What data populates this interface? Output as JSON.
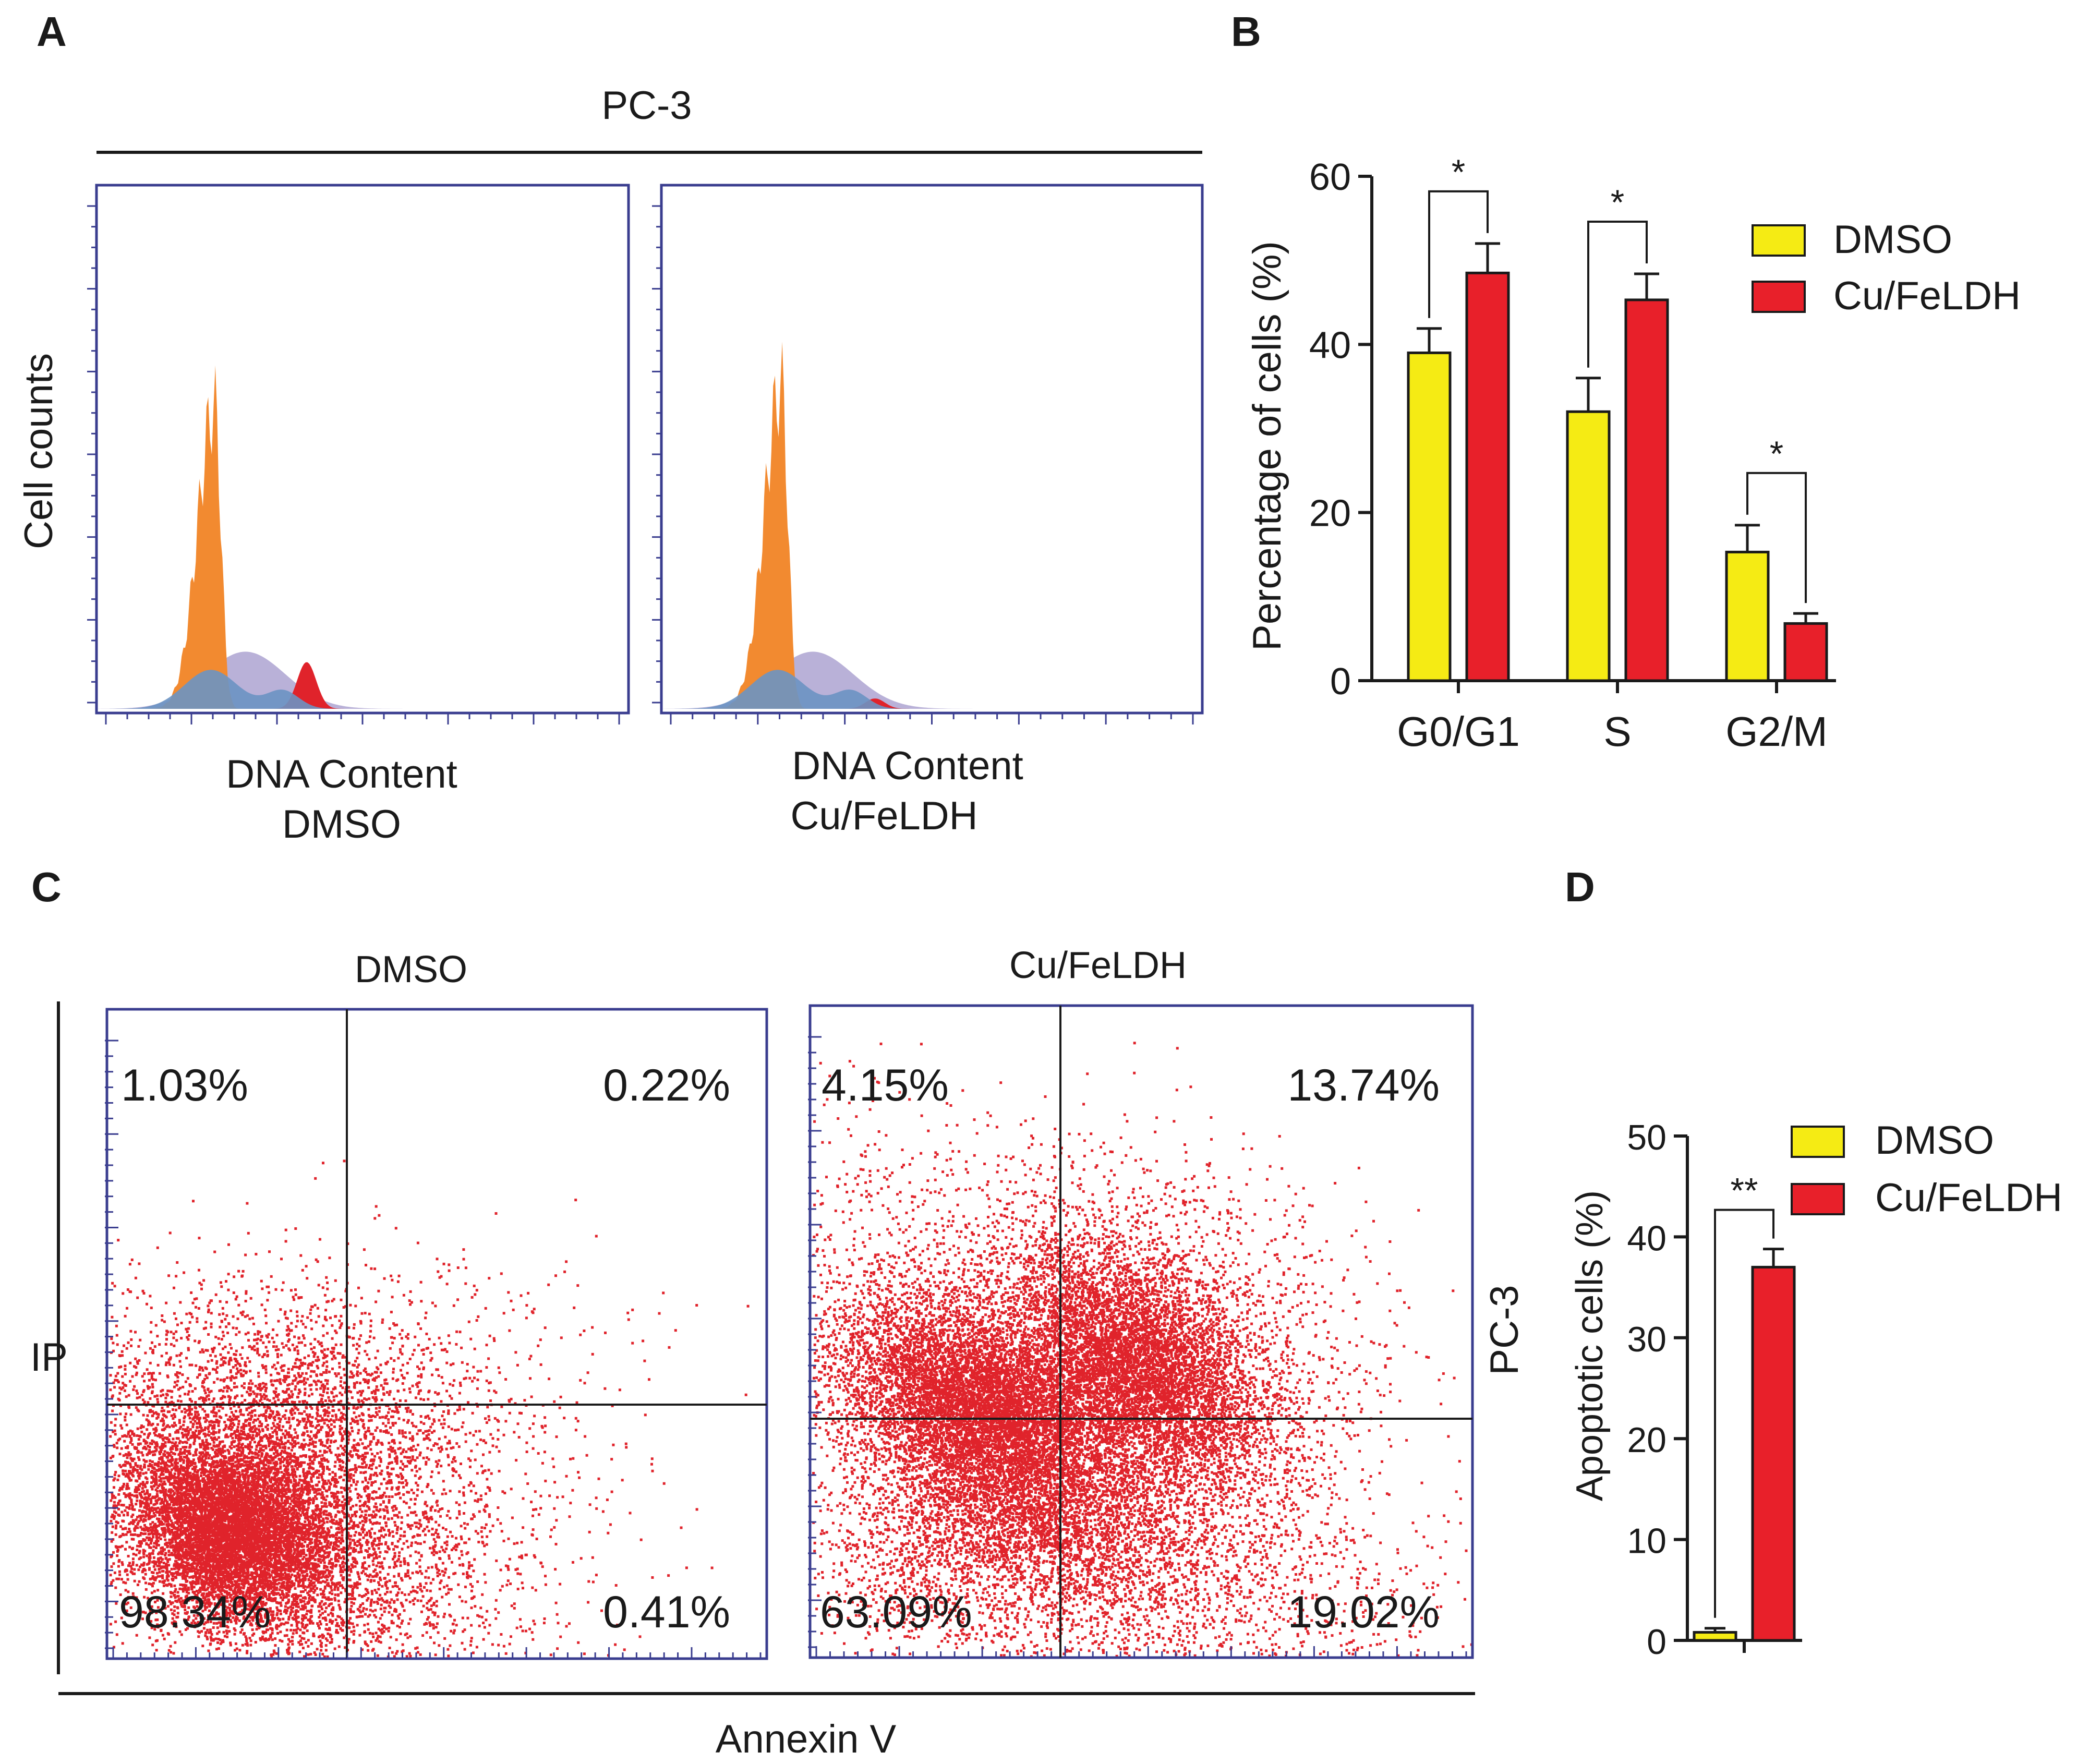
{
  "panels": {
    "A": {
      "letter": "A",
      "cell_line": "PC-3",
      "ylabel": "Cell counts",
      "histograms": [
        {
          "xlabel": [
            "DNA Content",
            "DMSO"
          ],
          "g1_peak": 0.58,
          "s_peak": 0.11,
          "g2_peak": 0.09
        },
        {
          "xlabel": [
            "DNA Content",
            "Cu/FeLDH"
          ],
          "g1_peak": 0.62,
          "s_peak": 0.11,
          "g2_peak": 0.02
        }
      ],
      "colors": {
        "g1": "#f28a30",
        "s": "#b9b1d8",
        "sub": "#6c93c3",
        "g2": "#e0232b",
        "frame": "#3a3d8f"
      }
    },
    "B": {
      "letter": "B",
      "legend": [
        "DMSO",
        "Cu/FeLDH"
      ],
      "sig_marks": [
        "*",
        "*",
        "*"
      ]
    },
    "C": {
      "letter": "C",
      "plots": [
        {
          "title": "DMSO",
          "q_ul": "1.03%",
          "q_ur": "0.22%",
          "q_ll": "98.34%",
          "q_lr": "0.41%"
        },
        {
          "title": "Cu/FeLDH",
          "q_ul": "4.15%",
          "q_ur": "13.74%",
          "q_ll": "63.09%",
          "q_lr": "19.02%"
        }
      ],
      "ylabel": "IP",
      "xlabel": "Annexin V",
      "side_label": "PC-3",
      "dot_color": "#e0232b"
    },
    "D": {
      "letter": "D",
      "legend": [
        "DMSO",
        "Cu/FeLDH"
      ],
      "sig_mark": "**"
    }
  },
  "chart_data": [
    {
      "type": "bar",
      "panel": "B",
      "categories": [
        "G0/G1",
        "S",
        "G2/M"
      ],
      "series": [
        {
          "name": "DMSO",
          "color": "#f5eb14",
          "values": [
            39,
            32,
            15.3
          ],
          "errors": [
            2.9,
            4,
            3.2
          ]
        },
        {
          "name": "Cu/FeLDH",
          "color": "#e8202a",
          "values": [
            48.5,
            45.3,
            6.8
          ],
          "errors": [
            3.5,
            3.1,
            1.2
          ]
        }
      ],
      "title": "",
      "xlabel": "",
      "ylabel": "Percentage of cells (%)",
      "ylim": [
        0,
        60
      ],
      "yticks": [
        0,
        20,
        40,
        60
      ],
      "grid": false,
      "legend_position": "top-right"
    },
    {
      "type": "bar",
      "panel": "D",
      "categories": [
        "DMSO",
        "Cu/FeLDH"
      ],
      "series": [
        {
          "name": "Apoptotic cells",
          "values": [
            0.8,
            37
          ],
          "errors": [
            0.4,
            1.8
          ],
          "colors": [
            "#f5eb14",
            "#e8202a"
          ]
        }
      ],
      "title": "",
      "xlabel": "",
      "ylabel": "Apoptotic cells (%)",
      "ylim": [
        0,
        50
      ],
      "yticks": [
        0,
        10,
        20,
        30,
        40,
        50
      ],
      "grid": false,
      "legend_position": "top-right"
    }
  ]
}
